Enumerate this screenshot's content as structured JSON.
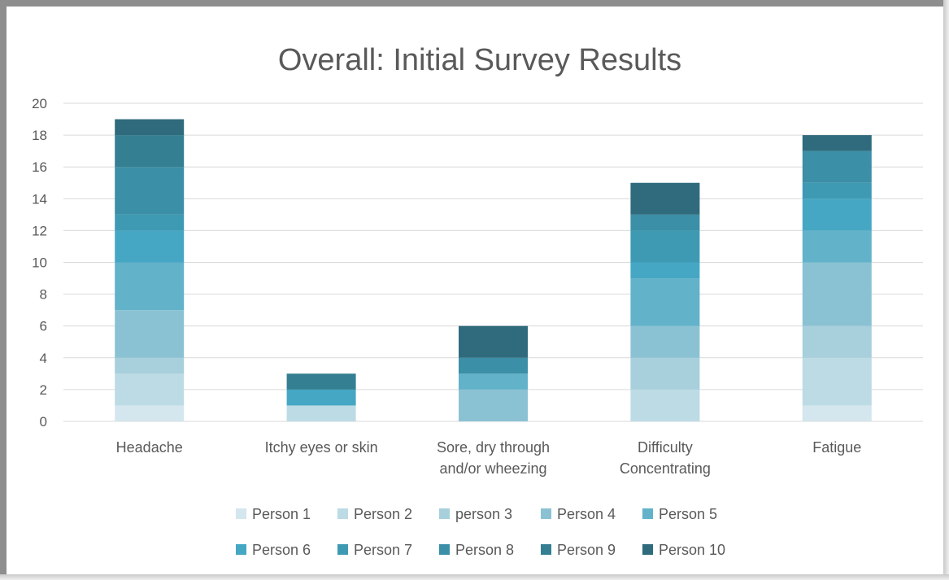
{
  "chart_data": {
    "type": "bar",
    "stacked": true,
    "title": "Overall: Initial Survey Results",
    "xlabel": "",
    "ylabel": "",
    "ylim": [
      0,
      20
    ],
    "yticks": [
      0,
      2,
      4,
      6,
      8,
      10,
      12,
      14,
      16,
      18,
      20
    ],
    "grid": true,
    "legend_position": "bottom",
    "categories": [
      [
        "Headache"
      ],
      [
        "Itchy eyes or skin"
      ],
      [
        "Sore, dry through",
        "and/or wheezing"
      ],
      [
        "Difficulty",
        "Concentrating"
      ],
      [
        "Fatigue"
      ]
    ],
    "series": [
      {
        "name": "Person 1",
        "color": "#d4e6ee",
        "values": [
          1,
          0,
          0,
          0,
          1
        ]
      },
      {
        "name": "Person 2",
        "color": "#bcdbe5",
        "values": [
          2,
          1,
          0,
          2,
          3
        ]
      },
      {
        "name": "person 3",
        "color": "#a7cfdc",
        "values": [
          1,
          0,
          0,
          2,
          2
        ]
      },
      {
        "name": "Person 4",
        "color": "#8bc2d3",
        "values": [
          3,
          0,
          2,
          2,
          4
        ]
      },
      {
        "name": "Person 5",
        "color": "#62b2ca",
        "values": [
          3,
          0,
          1,
          3,
          2
        ]
      },
      {
        "name": "Person 6",
        "color": "#45a7c3",
        "values": [
          2,
          1,
          0,
          1,
          2
        ]
      },
      {
        "name": "Person 7",
        "color": "#3e9ab3",
        "values": [
          1,
          0,
          0,
          2,
          1
        ]
      },
      {
        "name": "Person 8",
        "color": "#3b8fa6",
        "values": [
          3,
          0,
          1,
          1,
          2
        ]
      },
      {
        "name": "Person 9",
        "color": "#347f92",
        "values": [
          2,
          1,
          0,
          0,
          0
        ]
      },
      {
        "name": "Person 10",
        "color": "#2f6b7c",
        "values": [
          1,
          0,
          2,
          2,
          1
        ]
      }
    ]
  }
}
